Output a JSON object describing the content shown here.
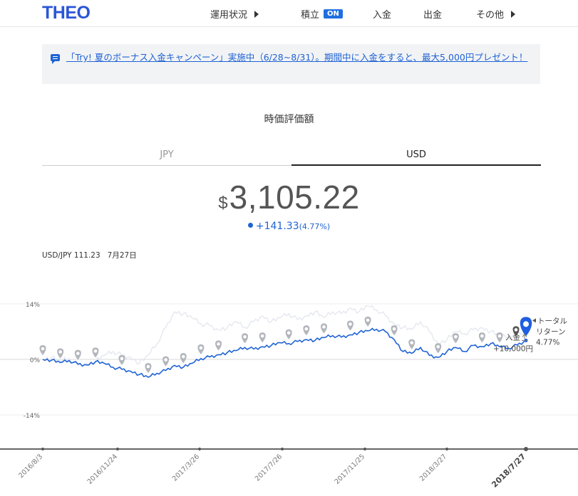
{
  "header": {
    "logo": "THEO",
    "nav": [
      {
        "label": "運用状況"
      },
      {
        "label": "積立",
        "badge": "ON"
      },
      {
        "label": "入金"
      },
      {
        "label": "出金"
      },
      {
        "label": "その他"
      }
    ]
  },
  "banner": {
    "text": "「Try! 夏のボーナス入金キャンペーン」実施中（6/28~8/31）。期間中に入金をすると、最大5,000円プレゼント！"
  },
  "main": {
    "title": "時価評価額",
    "tabs": [
      {
        "label": "JPY"
      },
      {
        "label": "USD"
      }
    ],
    "active_tab": "USD",
    "currency_symbol": "$",
    "value": "3,105.22",
    "change": "+141.33",
    "change_pct": "(4.77%)",
    "rate_label": "USD/JPY 111.23",
    "rate_date": "7月27日"
  },
  "colors": {
    "accent": "#1f63d4",
    "ghost_line": "#e3e6ee",
    "marker_gray": "#b3b6bc"
  },
  "chart_data": {
    "type": "line",
    "y_ticks": [
      "14%",
      "0%",
      "-14%"
    ],
    "ylim": [
      -20,
      18
    ],
    "x_ticks": [
      "2016/8/3",
      "2016/11/24",
      "2017/3/26",
      "2017/7/26",
      "2017/11/25",
      "2018/3/27",
      "2018/7/27"
    ],
    "series": [
      {
        "role": "total-return",
        "color": "#1f63d4",
        "values": [
          0.0,
          -0.2,
          -0.8,
          -0.3,
          -1.2,
          -1.4,
          -0.6,
          -1.0,
          -2.0,
          -2.5,
          -3.0,
          -3.8,
          -4.5,
          -3.5,
          -2.8,
          -1.5,
          -2.0,
          -1.0,
          0.2,
          0.6,
          1.2,
          1.7,
          2.2,
          3.0,
          2.6,
          3.2,
          3.5,
          4.2,
          4.0,
          4.5,
          5.0,
          4.8,
          5.5,
          6.0,
          5.6,
          6.2,
          6.8,
          7.2,
          7.6,
          7.0,
          5.0,
          2.0,
          1.5,
          3.0,
          1.0,
          0.5,
          2.0,
          3.0,
          2.0,
          3.5,
          3.2,
          4.0,
          3.2,
          2.8,
          3.6,
          4.77
        ]
      },
      {
        "role": "reference",
        "color": "#e3e6ee",
        "values": [
          0.0,
          0.5,
          -0.5,
          0.2,
          -1.5,
          -1.0,
          -0.5,
          1.0,
          2.0,
          1.0,
          0.5,
          -1.0,
          1.0,
          4.0,
          8.0,
          12.0,
          11.5,
          10.5,
          9.0,
          8.5,
          7.5,
          8.0,
          9.5,
          8.0,
          9.5,
          11.0,
          9.5,
          10.5,
          11.5,
          10.0,
          11.0,
          12.0,
          10.5,
          12.0,
          11.5,
          13.0,
          12.0,
          13.5,
          12.5,
          11.0,
          9.0,
          8.0,
          7.5,
          9.5,
          7.0,
          4.0,
          5.0,
          7.0,
          6.5,
          7.5,
          8.0,
          7.0,
          6.0,
          5.5,
          6.5,
          7.0
        ]
      }
    ],
    "markers": [
      {
        "type": "deposit",
        "label": "入金",
        "amount": "+10,000円"
      }
    ],
    "annotation": {
      "label": "トータル\nリターン",
      "value": "4.77%"
    }
  }
}
